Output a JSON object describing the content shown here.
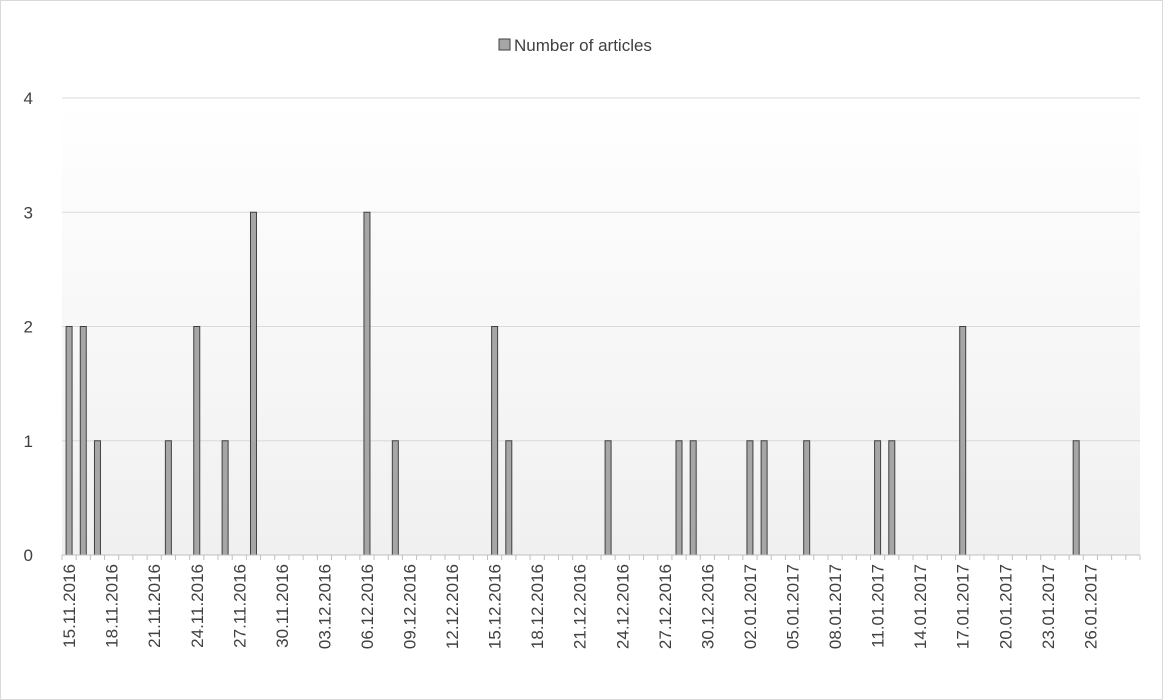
{
  "chart_data": {
    "type": "bar",
    "title": "",
    "xlabel": "",
    "ylabel": "",
    "ylim": [
      0,
      4
    ],
    "yticks": [
      0,
      1,
      2,
      3,
      4
    ],
    "grid": true,
    "legend_position": "top",
    "x_start": "15.11.2016",
    "x_end": "29.01.2017",
    "xtick_labels": [
      "15.11.2016",
      "18.11.2016",
      "21.11.2016",
      "24.11.2016",
      "27.11.2016",
      "30.11.2016",
      "03.12.2016",
      "06.12.2016",
      "09.12.2016",
      "12.12.2016",
      "15.12.2016",
      "18.12.2016",
      "21.12.2016",
      "24.12.2016",
      "27.12.2016",
      "30.12.2016",
      "02.01.2017",
      "05.01.2017",
      "08.01.2017",
      "11.01.2017",
      "14.01.2017",
      "17.01.2017",
      "20.01.2017",
      "23.01.2017",
      "26.01.2017"
    ],
    "series": [
      {
        "name": "Number of articles",
        "color": "#a6a6a6",
        "points": [
          {
            "x": "15.11.2016",
            "y": 2
          },
          {
            "x": "16.11.2016",
            "y": 2
          },
          {
            "x": "17.11.2016",
            "y": 1
          },
          {
            "x": "22.11.2016",
            "y": 1
          },
          {
            "x": "24.11.2016",
            "y": 2
          },
          {
            "x": "26.11.2016",
            "y": 1
          },
          {
            "x": "28.11.2016",
            "y": 3
          },
          {
            "x": "06.12.2016",
            "y": 3
          },
          {
            "x": "08.12.2016",
            "y": 1
          },
          {
            "x": "15.12.2016",
            "y": 2
          },
          {
            "x": "16.12.2016",
            "y": 1
          },
          {
            "x": "23.12.2016",
            "y": 1
          },
          {
            "x": "28.12.2016",
            "y": 1
          },
          {
            "x": "29.12.2016",
            "y": 1
          },
          {
            "x": "02.01.2017",
            "y": 1
          },
          {
            "x": "03.01.2017",
            "y": 1
          },
          {
            "x": "06.01.2017",
            "y": 1
          },
          {
            "x": "11.01.2017",
            "y": 1
          },
          {
            "x": "12.01.2017",
            "y": 1
          },
          {
            "x": "17.01.2017",
            "y": 2
          },
          {
            "x": "25.01.2017",
            "y": 1
          }
        ]
      }
    ]
  }
}
